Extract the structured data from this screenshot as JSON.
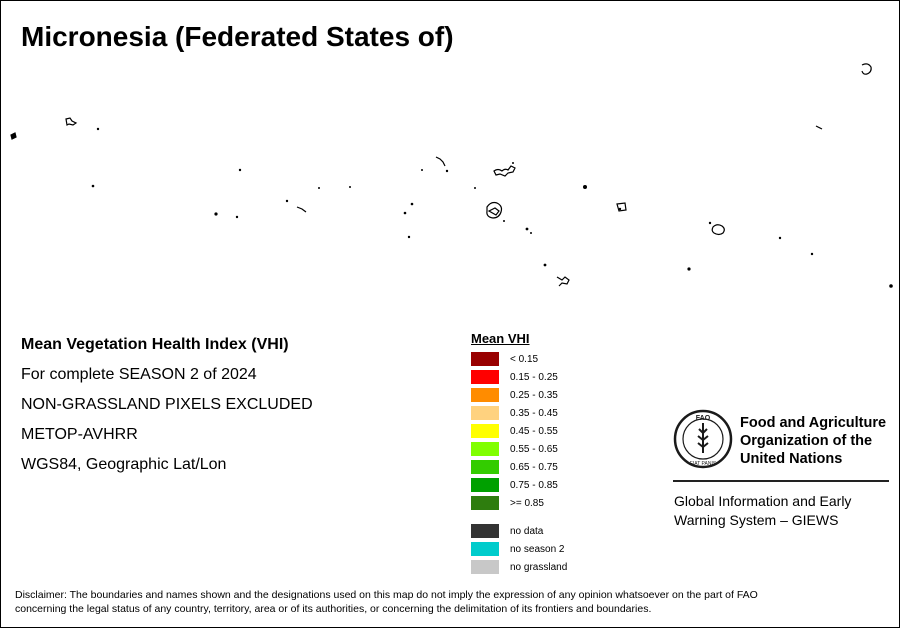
{
  "map": {
    "title": "Micronesia (Federated States of)"
  },
  "info": {
    "index_name": "Mean Vegetation Health Index (VHI)",
    "period": "For complete SEASON 2 of 2024",
    "exclusion": "NON-GRASSLAND PIXELS EXCLUDED",
    "sensor": "METOP-AVHRR",
    "projection": "WGS84, Geographic Lat/Lon"
  },
  "legend": {
    "title": "Mean VHI",
    "classes": [
      {
        "label": "< 0.15",
        "color": "#990000"
      },
      {
        "label": "0.15 - 0.25",
        "color": "#ff0000"
      },
      {
        "label": "0.25 - 0.35",
        "color": "#ff8c00"
      },
      {
        "label": "0.35 - 0.45",
        "color": "#ffd27f"
      },
      {
        "label": "0.45 - 0.55",
        "color": "#ffff00"
      },
      {
        "label": "0.55 - 0.65",
        "color": "#80ff00"
      },
      {
        "label": "0.65 - 0.75",
        "color": "#33cc00"
      },
      {
        "label": "0.75 - 0.85",
        "color": "#00a000"
      },
      {
        "label": ">= 0.85",
        "color": "#2e7d0e"
      }
    ],
    "extra_classes": [
      {
        "label": "no data",
        "color": "#333333"
      },
      {
        "label": "no season 2",
        "color": "#00cccc"
      },
      {
        "label": "no grassland",
        "color": "#c8c8c8"
      }
    ]
  },
  "fao": {
    "name_line1": "Food and Agriculture",
    "name_line2": "Organization of the",
    "name_line3": "United Nations",
    "logo_text": "FAO",
    "logo_motto": "FIAT PANIS"
  },
  "giews": {
    "line1": "Global Information and Early",
    "line2": "Warning System – GIEWS"
  },
  "disclaimer": {
    "line1": "Disclaimer: The boundaries and names shown and the designations used on this map do not imply the expression of any opinion whatsoever on the part of FAO",
    "line2": "concerning the legal status of any country, territory, area or of its authorities, or concerning the delimitation of its frontiers and boundaries."
  }
}
